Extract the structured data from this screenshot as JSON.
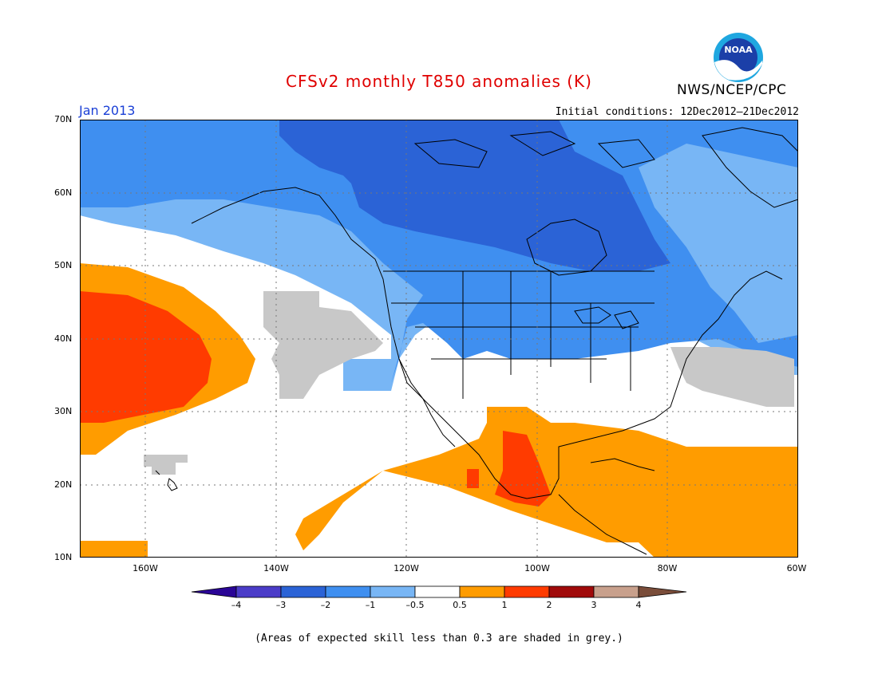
{
  "header": {
    "title": "CFSv2 monthly T850 anomalies (K)",
    "organization": "NWS/NCEP/CPC",
    "month": "Jan 2013",
    "initial_conditions": "Initial conditions: 12Dec2012–21Dec2012"
  },
  "logo": {
    "text": "NOAA",
    "icon": "noaa-logo-icon"
  },
  "map": {
    "lat_labels": [
      "70N",
      "60N",
      "50N",
      "40N",
      "30N",
      "20N",
      "10N"
    ],
    "lon_labels": [
      "160W",
      "140W",
      "120W",
      "100W",
      "80W",
      "60W"
    ],
    "grid": true
  },
  "colorbar": {
    "labels": [
      "–4",
      "–3",
      "–2",
      "–1",
      "–0.5",
      "0.5",
      "1",
      "2",
      "3",
      "4"
    ],
    "colors": {
      "lt_-4": "#2a0596",
      "-4_-3": "#4b3cc8",
      "-3_-2": "#2b63d6",
      "-2_-1": "#3f8ff0",
      "-1_-0.5": "#78b6f5",
      "-0.5_0.5": "#ffffff",
      "0.5_1": "#ff9c00",
      "1_2": "#ff3b00",
      "2_3": "#a00a0a",
      "3_4": "#c8a08c",
      "gt_4": "#7a4d3a"
    }
  },
  "grey_color": "#c8c8c8",
  "footnote": "(Areas of expected skill less than 0.3 are shaded in grey.)"
}
